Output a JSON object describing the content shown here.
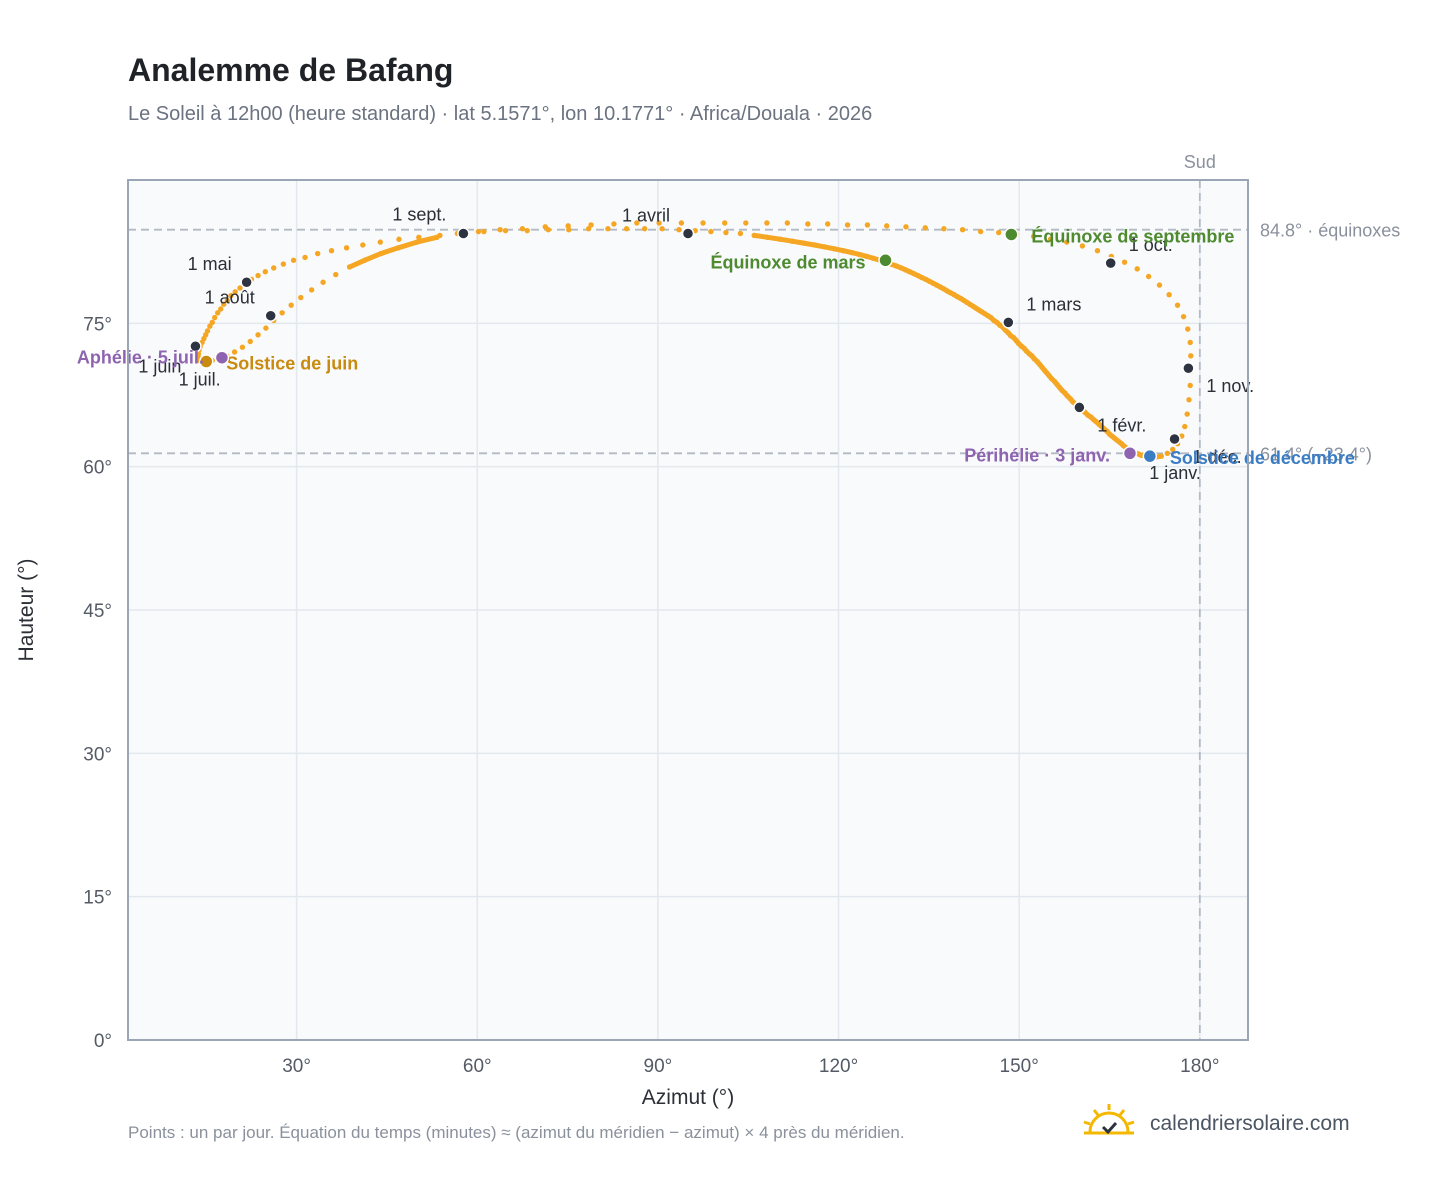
{
  "header": {
    "title": "Analemme de Bafang",
    "subtitle": "Le Soleil à 12h00 (heure standard) · lat 5.1571°, lon 10.1771° · Africa/Douala · 2026"
  },
  "footer": {
    "note": "Points : un par jour. Équation du temps (minutes) ≈ (azimut du méridien − azimut) × 4 près du méridien.",
    "brand": "calendriersolaire.com"
  },
  "colors": {
    "curve": "#f5a623",
    "month_point": "#2d3340",
    "equinox": "#4e8a2f",
    "june_solstice": "#c98a0e",
    "december_solstice": "#3b7dc4",
    "apsis": "#8e64b0",
    "grid": "#e3e8ee",
    "plot_bg": "#f8fafc",
    "frame": "#9aa6b5",
    "reference_line": "#b3bac3"
  },
  "chart_data": {
    "type": "scatter",
    "xlabel": "Azimut (°)",
    "ylabel": "Hauteur (°)",
    "xlim": [
      2,
      188
    ],
    "ylim": [
      0,
      90
    ],
    "xticks": [
      30,
      60,
      90,
      120,
      150,
      180
    ],
    "xtick_labels": [
      "30°",
      "60°",
      "90°",
      "120°",
      "150°",
      "180°"
    ],
    "yticks": [
      0,
      15,
      30,
      45,
      60,
      75
    ],
    "ytick_labels": [
      "0°",
      "15°",
      "30°",
      "45°",
      "60°",
      "75°"
    ],
    "grid": true,
    "reference_lines": {
      "vertical": {
        "x": 180,
        "label": "Sud"
      },
      "horizontal": [
        {
          "y": 84.8,
          "label": "84.8° · équinoxes"
        },
        {
          "y": 61.4,
          "label": "61.4° (−23.4°)"
        }
      ]
    },
    "daily_path": [
      [
        171.6,
        61.0
      ],
      [
        171.3,
        61.1
      ],
      [
        170.9,
        61.1
      ],
      [
        170.6,
        61.2
      ],
      [
        170.2,
        61.2
      ],
      [
        169.9,
        61.3
      ],
      [
        169.5,
        61.4
      ],
      [
        169.1,
        61.4
      ],
      [
        168.8,
        61.5
      ],
      [
        168.4,
        61.6
      ],
      [
        168.1,
        61.8
      ],
      [
        167.7,
        62.0
      ],
      [
        167.3,
        62.2
      ],
      [
        167.0,
        62.4
      ],
      [
        166.6,
        62.6
      ],
      [
        166.2,
        62.8
      ],
      [
        165.8,
        63.0
      ],
      [
        165.4,
        63.2
      ],
      [
        165.0,
        63.4
      ],
      [
        164.6,
        63.7
      ],
      [
        164.2,
        63.9
      ],
      [
        163.7,
        64.2
      ],
      [
        163.3,
        64.4
      ],
      [
        162.8,
        64.7
      ],
      [
        162.4,
        64.9
      ],
      [
        161.9,
        65.2
      ],
      [
        161.4,
        65.4
      ],
      [
        160.9,
        65.7
      ],
      [
        160.4,
        66.0
      ],
      [
        159.9,
        66.2
      ],
      [
        159.4,
        66.5
      ],
      [
        158.9,
        66.8
      ],
      [
        158.5,
        67.1
      ],
      [
        158.0,
        67.4
      ],
      [
        157.6,
        67.7
      ],
      [
        157.1,
        68.0
      ],
      [
        156.7,
        68.3
      ],
      [
        156.3,
        68.6
      ],
      [
        155.9,
        68.9
      ],
      [
        155.4,
        69.2
      ],
      [
        155.0,
        69.5
      ],
      [
        154.6,
        69.8
      ],
      [
        154.2,
        70.1
      ],
      [
        153.8,
        70.4
      ],
      [
        153.4,
        70.7
      ],
      [
        153.0,
        71.0
      ],
      [
        152.5,
        71.3
      ],
      [
        152.1,
        71.6
      ],
      [
        151.7,
        71.8
      ],
      [
        151.2,
        72.1
      ],
      [
        150.8,
        72.4
      ],
      [
        150.4,
        72.6
      ],
      [
        149.9,
        72.9
      ],
      [
        149.5,
        73.2
      ],
      [
        149.1,
        73.5
      ],
      [
        148.6,
        73.7
      ],
      [
        148.2,
        74.0
      ],
      [
        147.7,
        74.3
      ],
      [
        147.3,
        74.6
      ],
      [
        146.8,
        74.8
      ],
      [
        146.3,
        75.1
      ],
      [
        145.8,
        75.3
      ],
      [
        145.3,
        75.6
      ],
      [
        144.8,
        75.8
      ],
      [
        144.3,
        76.0
      ],
      [
        143.8,
        76.2
      ],
      [
        143.3,
        76.4
      ],
      [
        142.8,
        76.6
      ],
      [
        142.3,
        76.8
      ],
      [
        141.8,
        77.0
      ],
      [
        141.3,
        77.2
      ],
      [
        140.8,
        77.4
      ],
      [
        140.3,
        77.6
      ],
      [
        139.7,
        77.8
      ],
      [
        139.2,
        78.0
      ],
      [
        138.6,
        78.2
      ],
      [
        138.0,
        78.4
      ],
      [
        137.5,
        78.6
      ],
      [
        136.9,
        78.8
      ],
      [
        136.3,
        79.0
      ],
      [
        135.7,
        79.2
      ],
      [
        135.1,
        79.4
      ],
      [
        134.5,
        79.6
      ],
      [
        133.8,
        79.8
      ],
      [
        133.2,
        80.0
      ],
      [
        132.5,
        80.2
      ],
      [
        131.8,
        80.4
      ],
      [
        131.1,
        80.6
      ],
      [
        130.4,
        80.8
      ],
      [
        129.6,
        81.0
      ],
      [
        128.7,
        81.2
      ],
      [
        127.8,
        81.4
      ],
      [
        126.9,
        81.6
      ],
      [
        125.8,
        81.8
      ],
      [
        124.7,
        82.0
      ],
      [
        123.5,
        82.2
      ],
      [
        122.2,
        82.4
      ],
      [
        120.8,
        82.6
      ],
      [
        119.3,
        82.8
      ],
      [
        117.7,
        83.0
      ],
      [
        116.0,
        83.2
      ],
      [
        114.2,
        83.4
      ],
      [
        112.3,
        83.6
      ],
      [
        110.3,
        83.8
      ],
      [
        108.2,
        84.0
      ],
      [
        106.0,
        84.2
      ],
      [
        103.7,
        84.4
      ],
      [
        101.3,
        84.5
      ],
      [
        98.8,
        84.6
      ],
      [
        96.2,
        84.7
      ],
      [
        93.5,
        84.8
      ],
      [
        90.7,
        84.9
      ],
      [
        87.8,
        84.9
      ],
      [
        84.8,
        84.9
      ],
      [
        81.7,
        84.9
      ],
      [
        78.5,
        84.9
      ],
      [
        75.2,
        84.8
      ],
      [
        71.8,
        84.8
      ],
      [
        68.3,
        84.7
      ],
      [
        64.7,
        84.7
      ],
      [
        61.1,
        84.6
      ],
      [
        57.4,
        84.4
      ],
      [
        53.8,
        84.2
      ],
      [
        50.3,
        84.0
      ],
      [
        47.0,
        83.8
      ],
      [
        43.9,
        83.5
      ],
      [
        41.0,
        83.2
      ],
      [
        38.3,
        82.9
      ],
      [
        35.8,
        82.6
      ],
      [
        33.5,
        82.3
      ],
      [
        31.4,
        81.9
      ],
      [
        29.5,
        81.6
      ],
      [
        27.8,
        81.2
      ],
      [
        26.2,
        80.8
      ],
      [
        24.8,
        80.4
      ],
      [
        23.6,
        80.0
      ],
      [
        22.5,
        79.6
      ],
      [
        21.5,
        79.2
      ],
      [
        20.6,
        78.7
      ],
      [
        19.8,
        78.3
      ],
      [
        19.1,
        77.9
      ],
      [
        18.5,
        77.4
      ],
      [
        17.9,
        77.0
      ],
      [
        17.4,
        76.5
      ],
      [
        16.9,
        76.1
      ],
      [
        16.4,
        75.6
      ],
      [
        16.0,
        75.1
      ],
      [
        15.6,
        74.7
      ],
      [
        15.2,
        74.2
      ],
      [
        14.9,
        73.8
      ],
      [
        14.6,
        73.4
      ],
      [
        14.3,
        73.0
      ],
      [
        14.0,
        72.6
      ],
      [
        13.8,
        72.2
      ],
      [
        13.7,
        71.8
      ],
      [
        13.7,
        71.4
      ],
      [
        13.9,
        71.1
      ],
      [
        14.3,
        70.9
      ],
      [
        15.0,
        71.0
      ],
      [
        16.0,
        71.1
      ],
      [
        17.2,
        71.3
      ],
      [
        18.4,
        71.6
      ],
      [
        19.7,
        72.0
      ],
      [
        21.0,
        72.5
      ],
      [
        22.3,
        73.1
      ],
      [
        23.6,
        73.8
      ],
      [
        24.9,
        74.5
      ],
      [
        26.2,
        75.3
      ],
      [
        27.6,
        76.1
      ],
      [
        29.1,
        76.9
      ],
      [
        30.7,
        77.7
      ],
      [
        32.5,
        78.5
      ],
      [
        34.4,
        79.3
      ],
      [
        36.5,
        80.1
      ],
      [
        38.8,
        80.9
      ],
      [
        41.3,
        81.6
      ],
      [
        44.0,
        82.3
      ],
      [
        46.9,
        82.9
      ],
      [
        50.0,
        83.5
      ],
      [
        53.3,
        84.0
      ],
      [
        56.7,
        84.4
      ],
      [
        60.2,
        84.6
      ],
      [
        63.8,
        84.8
      ],
      [
        67.5,
        84.9
      ],
      [
        71.3,
        85.1
      ],
      [
        75.1,
        85.2
      ],
      [
        78.9,
        85.3
      ],
      [
        82.7,
        85.4
      ],
      [
        86.5,
        85.5
      ],
      [
        90.2,
        85.5
      ],
      [
        93.9,
        85.5
      ],
      [
        97.5,
        85.5
      ],
      [
        101.1,
        85.5
      ],
      [
        104.6,
        85.5
      ],
      [
        108.1,
        85.5
      ],
      [
        111.5,
        85.5
      ],
      [
        114.9,
        85.4
      ],
      [
        118.2,
        85.4
      ],
      [
        121.5,
        85.3
      ],
      [
        124.8,
        85.3
      ],
      [
        128.0,
        85.2
      ],
      [
        131.2,
        85.1
      ],
      [
        134.4,
        85.0
      ],
      [
        137.5,
        84.9
      ],
      [
        140.6,
        84.8
      ],
      [
        143.6,
        84.6
      ],
      [
        146.6,
        84.5
      ],
      [
        149.5,
        84.3
      ],
      [
        152.4,
        84.1
      ],
      [
        155.2,
        83.8
      ],
      [
        157.9,
        83.5
      ],
      [
        160.5,
        83.1
      ],
      [
        163.0,
        82.6
      ],
      [
        165.3,
        82.0
      ],
      [
        167.5,
        81.4
      ],
      [
        169.6,
        80.7
      ],
      [
        171.5,
        79.9
      ],
      [
        173.3,
        79.0
      ],
      [
        174.9,
        78.0
      ],
      [
        176.3,
        76.9
      ],
      [
        177.3,
        75.7
      ],
      [
        178.0,
        74.4
      ],
      [
        178.4,
        73.0
      ],
      [
        178.5,
        71.6
      ],
      [
        178.5,
        70.0
      ],
      [
        178.4,
        68.5
      ],
      [
        178.2,
        67.0
      ],
      [
        177.9,
        65.5
      ],
      [
        177.5,
        64.2
      ],
      [
        177.0,
        63.2
      ],
      [
        176.3,
        62.4
      ],
      [
        175.5,
        61.8
      ],
      [
        174.6,
        61.4
      ],
      [
        173.6,
        61.1
      ],
      [
        172.6,
        61.0
      ],
      [
        171.6,
        61.0
      ]
    ],
    "month_markers": [
      {
        "label": "1 janv.",
        "x": 171.6,
        "y": 61.0
      },
      {
        "label": "1 févr.",
        "x": 160.0,
        "y": 66.2
      },
      {
        "label": "1 mars",
        "x": 148.2,
        "y": 75.1
      },
      {
        "label": "1 avril",
        "x": 95.0,
        "y": 84.4
      },
      {
        "label": "1 mai",
        "x": 21.7,
        "y": 79.3
      },
      {
        "label": "1 juin",
        "x": 13.2,
        "y": 72.6
      },
      {
        "label": "1 juil.",
        "x": 14.9,
        "y": 70.9
      },
      {
        "label": "1 août",
        "x": 25.7,
        "y": 75.8
      },
      {
        "label": "1 sept.",
        "x": 57.7,
        "y": 84.4
      },
      {
        "label": "1 oct.",
        "x": 165.2,
        "y": 81.3
      },
      {
        "label": "1 nov.",
        "x": 178.1,
        "y": 70.3
      },
      {
        "label": "1 déc.",
        "x": 175.8,
        "y": 62.9
      }
    ],
    "events": [
      {
        "label": "Équinoxe de mars",
        "x": 127.8,
        "y": 81.6,
        "kind": "equinox"
      },
      {
        "label": "Équinoxe de septembre",
        "x": 148.7,
        "y": 84.3,
        "kind": "equinox"
      },
      {
        "label": "Solstice de juin",
        "x": 15.0,
        "y": 71.0,
        "kind": "june_solstice"
      },
      {
        "label": "Solstice de décembre",
        "x": 171.7,
        "y": 61.1,
        "kind": "december_solstice"
      },
      {
        "label": "Aphélie · 5 juil.",
        "x": 17.6,
        "y": 71.4,
        "kind": "apsis"
      },
      {
        "label": "Périhélie · 3 janv.",
        "x": 168.4,
        "y": 61.4,
        "kind": "apsis"
      }
    ]
  }
}
